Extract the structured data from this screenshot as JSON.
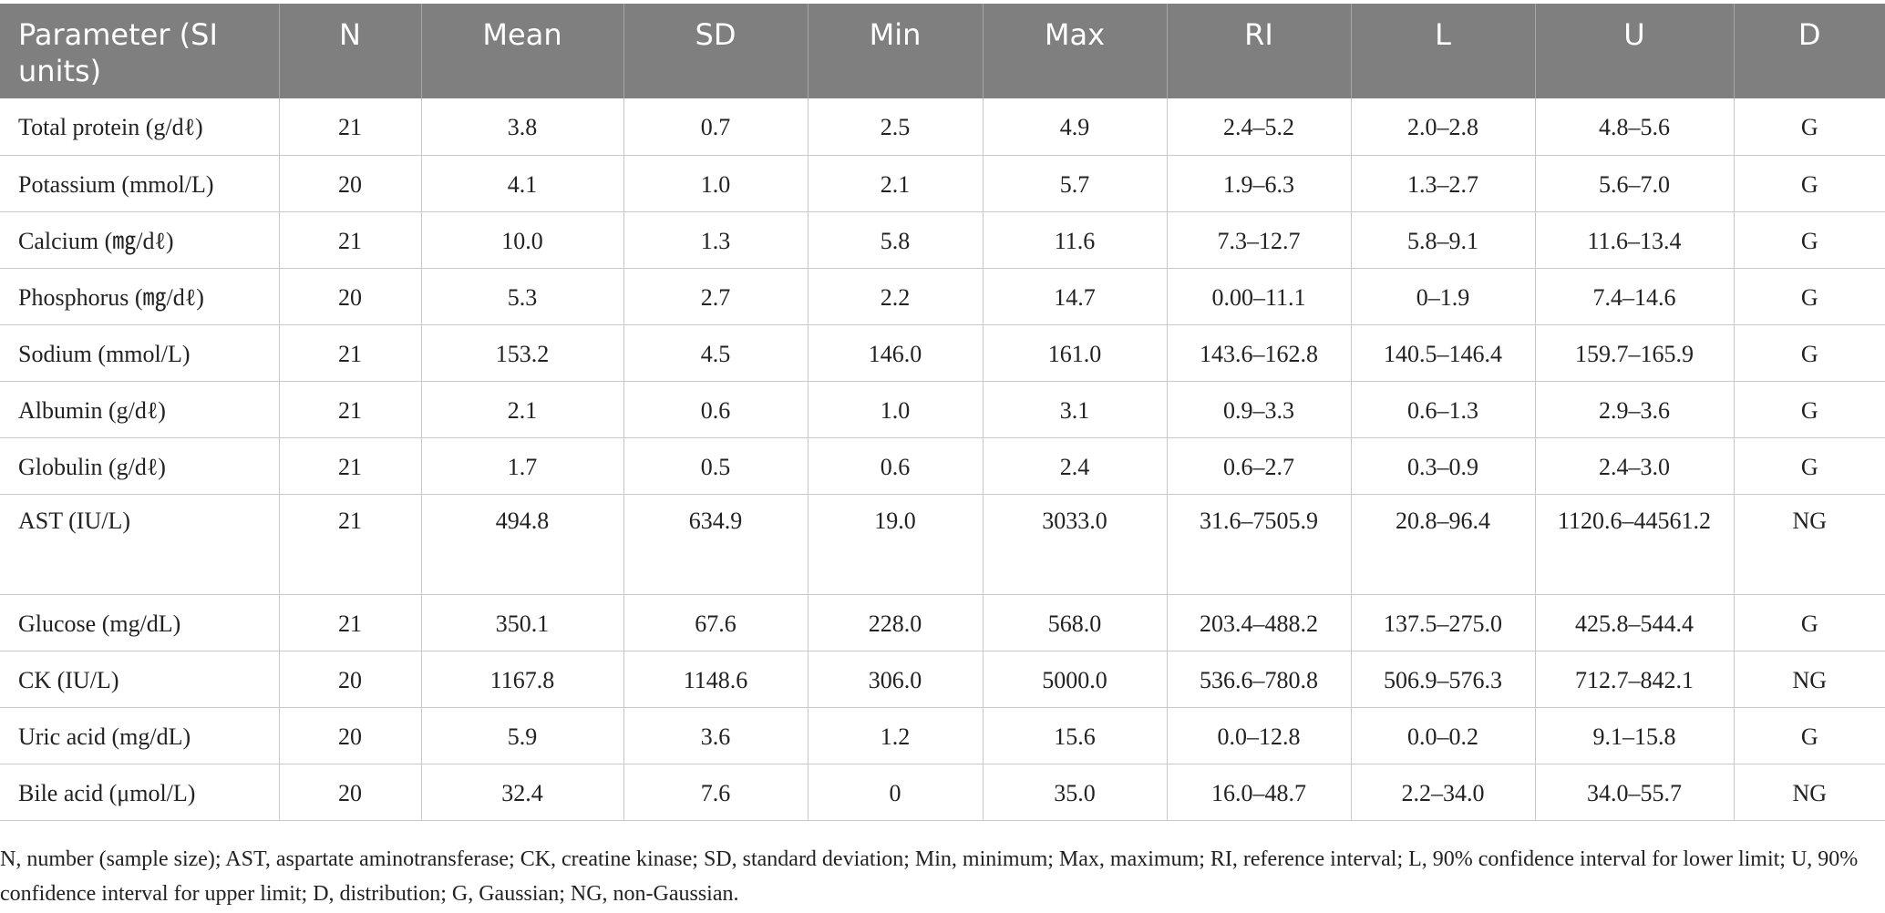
{
  "table": {
    "headers": [
      "Parameter (SI units)",
      "N",
      "Mean",
      "SD",
      "Min",
      "Max",
      "RI",
      "L",
      "U",
      "D"
    ],
    "rows": [
      [
        "Total protein (g/dℓ)",
        "21",
        "3.8",
        "0.7",
        "2.5",
        "4.9",
        "2.4–5.2",
        "2.0–2.8",
        "4.8–5.6",
        "G"
      ],
      [
        "Potassium (mmol/L)",
        "20",
        "4.1",
        "1.0",
        "2.1",
        "5.7",
        "1.9–6.3",
        "1.3–2.7",
        "5.6–7.0",
        "G"
      ],
      [
        "Calcium (㎎/dℓ)",
        "21",
        "10.0",
        "1.3",
        "5.8",
        "11.6",
        "7.3–12.7",
        "5.8–9.1",
        "11.6–13.4",
        "G"
      ],
      [
        "Phosphorus (㎎/dℓ)",
        "20",
        "5.3",
        "2.7",
        "2.2",
        "14.7",
        "0.00–11.1",
        "0–1.9",
        "7.4–14.6",
        "G"
      ],
      [
        "Sodium (mmol/L)",
        "21",
        "153.2",
        "4.5",
        "146.0",
        "161.0",
        "143.6–162.8",
        "140.5–146.4",
        "159.7–165.9",
        "G"
      ],
      [
        "Albumin (g/dℓ)",
        "21",
        "2.1",
        "0.6",
        "1.0",
        "3.1",
        "0.9–3.3",
        "0.6–1.3",
        "2.9–3.6",
        "G"
      ],
      [
        "Globulin (g/dℓ)",
        "21",
        "1.7",
        "0.5",
        "0.6",
        "2.4",
        "0.6–2.7",
        "0.3–0.9",
        "2.4–3.0",
        "G"
      ],
      [
        "AST (IU/L)",
        "21",
        "494.8",
        "634.9",
        "19.0",
        "3033.0",
        "31.6–7505.9",
        "20.8–96.4",
        "1120.6–44561.2",
        "NG"
      ],
      [
        "Glucose (mg/dL)",
        "21",
        "350.1",
        "67.6",
        "228.0",
        "568.0",
        "203.4–488.2",
        "137.5–275.0",
        "425.8–544.4",
        "G"
      ],
      [
        "CK (IU/L)",
        "20",
        "1167.8",
        "1148.6",
        "306.0",
        "5000.0",
        "536.6–780.8",
        "506.9–576.3",
        "712.7–842.1",
        "NG"
      ],
      [
        "Uric acid (mg/dL)",
        "20",
        "5.9",
        "3.6",
        "1.2",
        "15.6",
        "0.0–12.8",
        "0.0–0.2",
        "9.1–15.8",
        "G"
      ],
      [
        "Bile acid (μmol/L)",
        "20",
        "32.4",
        "7.6",
        "0",
        "35.0",
        "16.0–48.7",
        "2.2–34.0",
        "34.0–55.7",
        "NG"
      ]
    ]
  },
  "footnote": "N, number (sample size); AST, aspartate aminotransferase; CK, creatine kinase; SD, standard deviation; Min, minimum; Max, maximum; RI, reference interval; L, 90% confidence interval for lower limit; U, 90% confidence interval for upper limit; D, distribution; G, Gaussian; NG, non-Gaussian."
}
